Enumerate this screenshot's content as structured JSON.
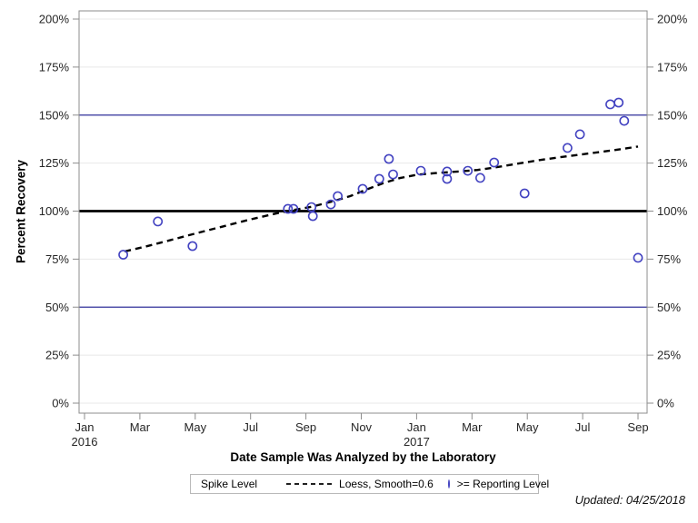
{
  "chart_data": {
    "type": "scatter",
    "title": "",
    "xlabel": "Date Sample Was Analyzed by the Laboratory",
    "ylabel": "Percent Recovery",
    "footnote": "Updated: 04/25/2018",
    "x_encoding": "months since Jan 2016 (0 = Jan 2016, 20 = Sep 2017)",
    "xlim": [
      -0.2,
      20.3
    ],
    "ylim": [
      0,
      200
    ],
    "grid": "horizontal only",
    "x_ticks": [
      {
        "pos": 0,
        "label": "Jan",
        "year": "2016"
      },
      {
        "pos": 2,
        "label": "Mar"
      },
      {
        "pos": 4,
        "label": "May"
      },
      {
        "pos": 6,
        "label": "Jul"
      },
      {
        "pos": 8,
        "label": "Sep"
      },
      {
        "pos": 10,
        "label": "Nov"
      },
      {
        "pos": 12,
        "label": "Jan",
        "year": "2017"
      },
      {
        "pos": 14,
        "label": "Mar"
      },
      {
        "pos": 16,
        "label": "May"
      },
      {
        "pos": 18,
        "label": "Jul"
      },
      {
        "pos": 20,
        "label": "Sep"
      }
    ],
    "y_ticks": [
      {
        "value": 0,
        "label": "0%"
      },
      {
        "value": 25,
        "label": "25%"
      },
      {
        "value": 50,
        "label": "50%"
      },
      {
        "value": 75,
        "label": "75%"
      },
      {
        "value": 100,
        "label": "100%"
      },
      {
        "value": 125,
        "label": "125%"
      },
      {
        "value": 150,
        "label": "150%"
      },
      {
        "value": 175,
        "label": "175%"
      },
      {
        "value": 200,
        "label": "200%"
      }
    ],
    "reference_lines": [
      {
        "value": 150,
        "color": "#32329c",
        "width": 1.2,
        "meaning": "upper limit"
      },
      {
        "value": 100,
        "color": "#000000",
        "width": 2.8,
        "meaning": "Spike Level"
      },
      {
        "value": 50,
        "color": "#32329c",
        "width": 1.2,
        "meaning": "lower limit"
      }
    ],
    "series": [
      {
        "name": ">= Reporting Level",
        "type": "scatter",
        "marker": "open-circle",
        "color": "#4343c1",
        "points": [
          [
            1.4,
            77.3
          ],
          [
            2.65,
            94.6
          ],
          [
            3.9,
            81.8
          ],
          [
            7.35,
            101.2
          ],
          [
            7.55,
            101.2
          ],
          [
            8.2,
            102.1
          ],
          [
            8.25,
            97.4
          ],
          [
            8.9,
            103.5
          ],
          [
            9.15,
            107.8
          ],
          [
            10.05,
            111.6
          ],
          [
            10.65,
            116.8
          ],
          [
            11.0,
            127.2
          ],
          [
            11.15,
            119.1
          ],
          [
            12.15,
            121.0
          ],
          [
            13.1,
            120.6
          ],
          [
            13.1,
            116.8
          ],
          [
            13.85,
            121.0
          ],
          [
            14.3,
            117.3
          ],
          [
            14.8,
            125.3
          ],
          [
            15.9,
            109.2
          ],
          [
            17.45,
            132.9
          ],
          [
            17.9,
            140.0
          ],
          [
            19.0,
            155.6
          ],
          [
            19.3,
            156.5
          ],
          [
            19.5,
            147.0
          ],
          [
            20.0,
            75.7
          ]
        ]
      },
      {
        "name": "Loess, Smooth=0.6",
        "type": "line",
        "style": "dashed",
        "color": "#000000",
        "points": [
          [
            1.45,
            79.0
          ],
          [
            2.2,
            81.5
          ],
          [
            3,
            84.5
          ],
          [
            4,
            88.3
          ],
          [
            5,
            92.0
          ],
          [
            6,
            95.7
          ],
          [
            7,
            99.0
          ],
          [
            7.6,
            100.7
          ],
          [
            8.2,
            102.2
          ],
          [
            9,
            105.2
          ],
          [
            9.6,
            107.8
          ],
          [
            10.2,
            111.3
          ],
          [
            10.8,
            114.6
          ],
          [
            11.4,
            117.2
          ],
          [
            12,
            118.9
          ],
          [
            12.7,
            119.8
          ],
          [
            13.5,
            120.6
          ],
          [
            14.2,
            121.4
          ],
          [
            14.9,
            122.9
          ],
          [
            15.6,
            124.6
          ],
          [
            16.4,
            126.5
          ],
          [
            17.2,
            128.1
          ],
          [
            18,
            129.6
          ],
          [
            18.8,
            131.1
          ],
          [
            19.4,
            132.3
          ],
          [
            20,
            133.6
          ]
        ]
      }
    ],
    "legend": {
      "position": "bottom center, framed box",
      "title": "Spike Level",
      "items": [
        {
          "label": "Loess, Smooth=0.6",
          "swatch": "dashed-line"
        },
        {
          "label": ">= Reporting Level",
          "swatch": "open-circle"
        }
      ]
    },
    "colors": {
      "frame": "#8c8c8c",
      "grid": "#e8e8e8",
      "tick_label": "#262626",
      "marker": "#4343c1",
      "reference_blue": "#32329c"
    }
  }
}
